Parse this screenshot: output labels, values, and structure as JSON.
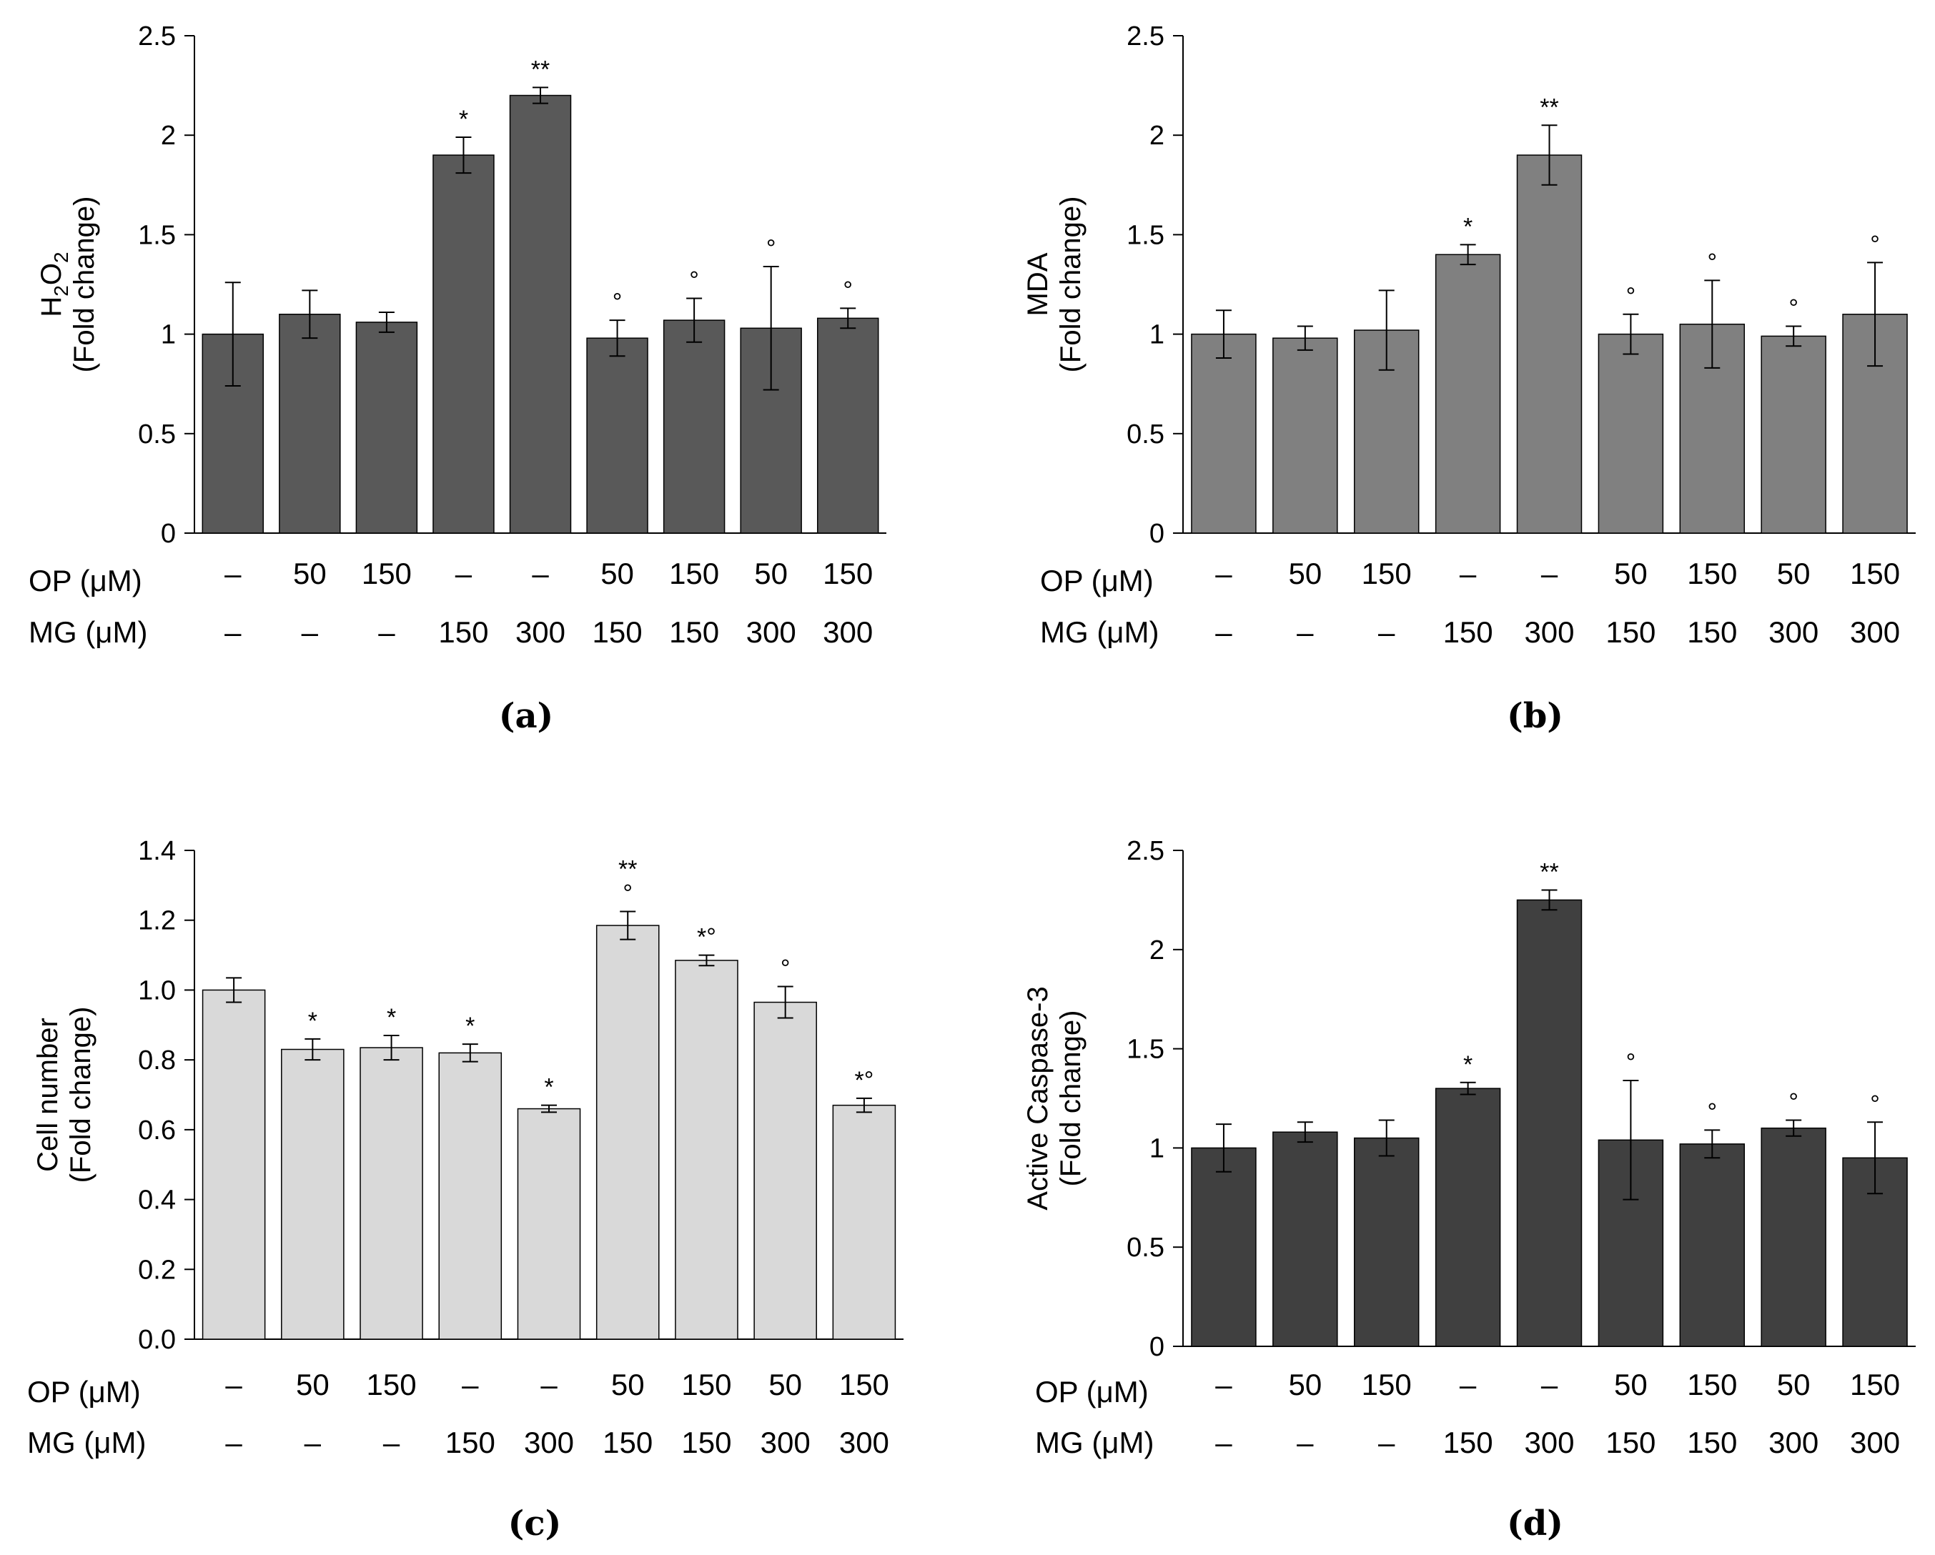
{
  "row_labels": {
    "op": "OP (μM)",
    "mg": "MG (μM)"
  },
  "chart_data": [
    {
      "panel": "(a)",
      "type": "bar",
      "ylabel": [
        "H2O2",
        "(Fold change)"
      ],
      "ylim": [
        0,
        2.5
      ],
      "yticks": [
        "0",
        "0.5",
        "1",
        "1.5",
        "2",
        "2.5"
      ],
      "bar_color": "#595959",
      "op": [
        "–",
        "50",
        "150",
        "–",
        "–",
        "50",
        "150",
        "50",
        "150"
      ],
      "mg": [
        "–",
        "–",
        "–",
        "150",
        "300",
        "150",
        "150",
        "300",
        "300"
      ],
      "values": [
        1.0,
        1.1,
        1.06,
        1.9,
        2.2,
        0.98,
        1.07,
        1.03,
        1.08
      ],
      "errors": [
        0.26,
        0.12,
        0.05,
        0.09,
        0.04,
        0.09,
        0.11,
        0.31,
        0.05
      ],
      "annotations": [
        [],
        [],
        [],
        [
          "*"
        ],
        [
          "**"
        ],
        [
          "°"
        ],
        [
          "°"
        ],
        [
          "°"
        ],
        [
          "°"
        ]
      ]
    },
    {
      "panel": "(b)",
      "type": "bar",
      "ylabel": [
        "MDA",
        "(Fold change)"
      ],
      "ylim": [
        0,
        2.5
      ],
      "yticks": [
        "0",
        "0.5",
        "1",
        "1.5",
        "2",
        "2.5"
      ],
      "bar_color": "#808080",
      "op": [
        "–",
        "50",
        "150",
        "–",
        "–",
        "50",
        "150",
        "50",
        "150"
      ],
      "mg": [
        "–",
        "–",
        "–",
        "150",
        "300",
        "150",
        "150",
        "300",
        "300"
      ],
      "values": [
        1.0,
        0.98,
        1.02,
        1.4,
        1.9,
        1.0,
        1.05,
        0.99,
        1.1
      ],
      "errors": [
        0.12,
        0.06,
        0.2,
        0.05,
        0.15,
        0.1,
        0.22,
        0.05,
        0.26
      ],
      "annotations": [
        [],
        [],
        [],
        [
          "*"
        ],
        [
          "**"
        ],
        [
          "°"
        ],
        [
          "°"
        ],
        [
          "°"
        ],
        [
          "°"
        ]
      ]
    },
    {
      "panel": "(c)",
      "type": "bar",
      "ylabel": [
        "Cell number",
        "(Fold change)"
      ],
      "ylim": [
        0,
        1.4
      ],
      "yticks": [
        "0.0",
        "0.2",
        "0.4",
        "0.6",
        "0.8",
        "1.0",
        "1.2",
        "1.4"
      ],
      "bar_color": "#d9d9d9",
      "op": [
        "–",
        "50",
        "150",
        "–",
        "–",
        "50",
        "150",
        "50",
        "150"
      ],
      "mg": [
        "–",
        "–",
        "–",
        "150",
        "300",
        "150",
        "150",
        "300",
        "300"
      ],
      "values": [
        1.0,
        0.83,
        0.835,
        0.82,
        0.66,
        1.185,
        1.085,
        0.965,
        0.67
      ],
      "errors": [
        0.035,
        0.03,
        0.035,
        0.025,
        0.01,
        0.04,
        0.015,
        0.045,
        0.02
      ],
      "annotations": [
        [],
        [
          "*"
        ],
        [
          "*"
        ],
        [
          "*"
        ],
        [
          "*"
        ],
        [
          "**",
          "°"
        ],
        [
          "*°"
        ],
        [
          "°"
        ],
        [
          "*°"
        ]
      ]
    },
    {
      "panel": "(d)",
      "type": "bar",
      "ylabel": [
        "Active Caspase-3",
        "(Fold change)"
      ],
      "ylim": [
        0,
        2.5
      ],
      "yticks": [
        "0",
        "0.5",
        "1",
        "1.5",
        "2",
        "2.5"
      ],
      "bar_color": "#404040",
      "op": [
        "–",
        "50",
        "150",
        "–",
        "–",
        "50",
        "150",
        "50",
        "150"
      ],
      "mg": [
        "–",
        "–",
        "–",
        "150",
        "300",
        "150",
        "150",
        "300",
        "300"
      ],
      "values": [
        1.0,
        1.08,
        1.05,
        1.3,
        2.25,
        1.04,
        1.02,
        1.1,
        0.95
      ],
      "errors": [
        0.12,
        0.05,
        0.09,
        0.03,
        0.05,
        0.3,
        0.07,
        0.04,
        0.18
      ],
      "annotations": [
        [],
        [],
        [],
        [
          "*"
        ],
        [
          "**"
        ],
        [
          "°"
        ],
        [
          "°"
        ],
        [
          "°"
        ],
        [
          "°"
        ]
      ]
    }
  ]
}
